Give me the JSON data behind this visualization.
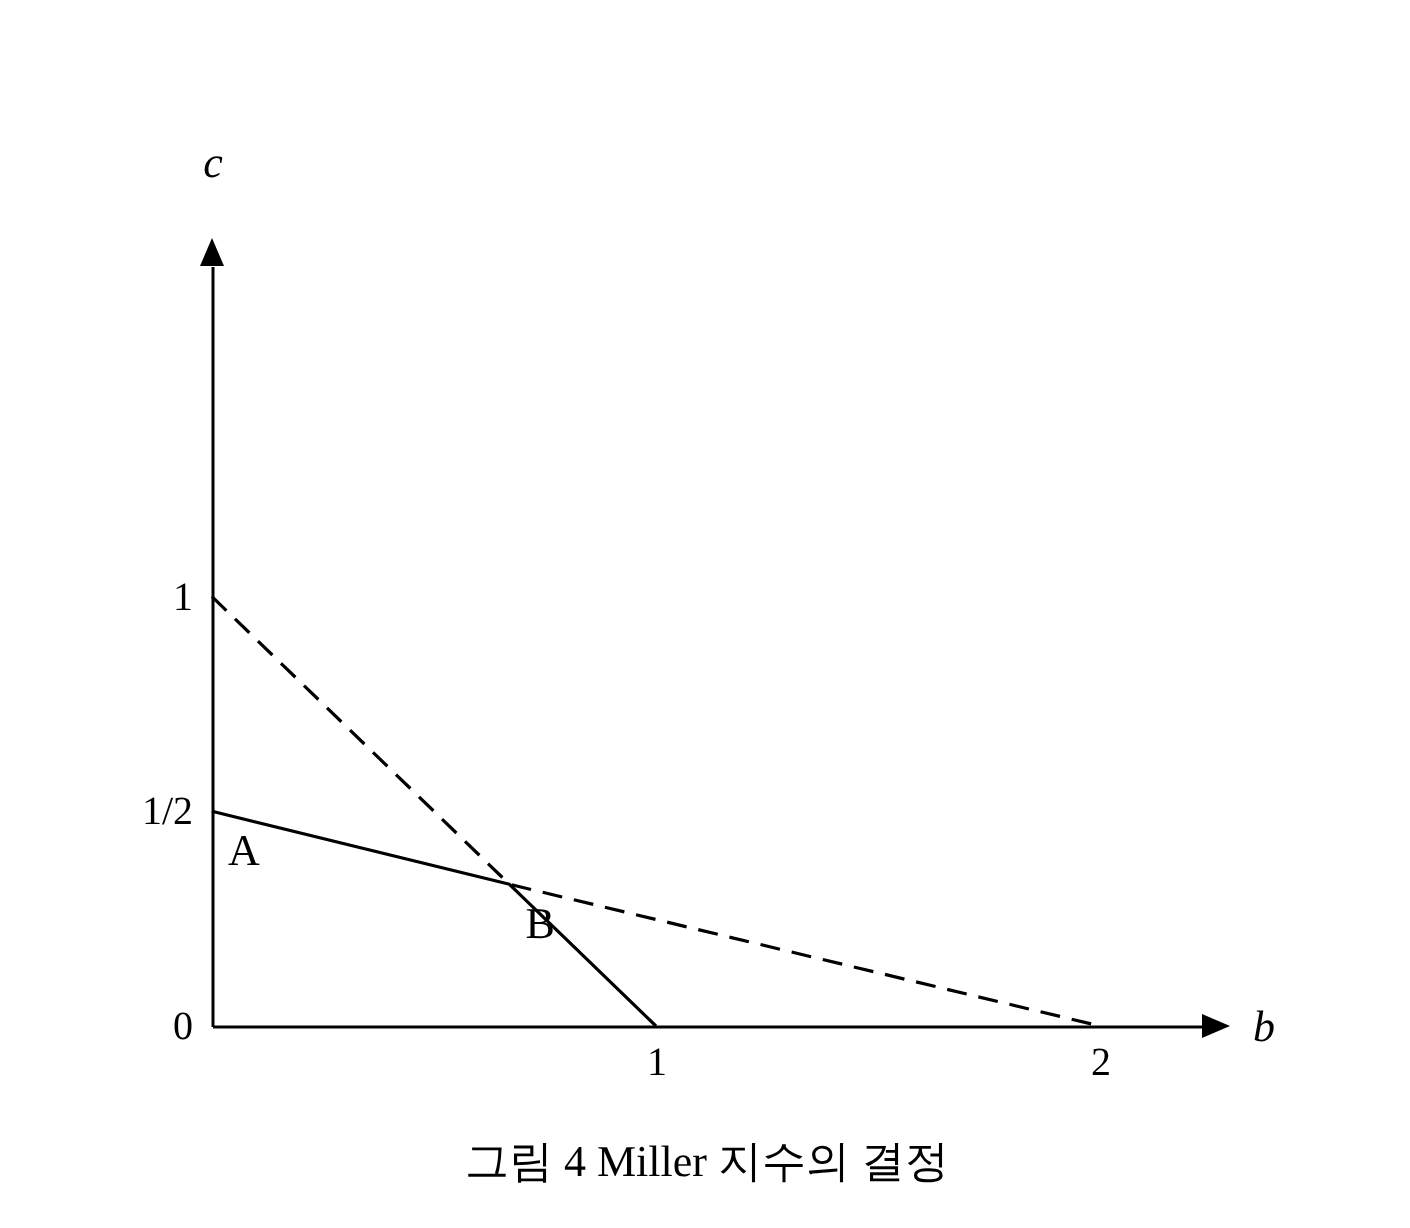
{
  "chart_data": {
    "type": "line",
    "title": "그림 4  Miller 지수의 결정",
    "xlabel": "b",
    "ylabel": "c",
    "xlim": [
      0,
      2.23
    ],
    "ylim": [
      0,
      1.77
    ],
    "xticks": [
      1,
      2
    ],
    "yticks": [
      0,
      {
        "value": 0.5,
        "label": "1/2"
      },
      1
    ],
    "grid": false,
    "marker": "none",
    "series": [
      {
        "color": "#000000",
        "line_style": "solid",
        "x": [
          0,
          0.67,
          1
        ],
        "values": [
          0.5,
          0.33,
          0
        ]
      },
      {
        "color": "#000000",
        "line_style": "dashed",
        "x": [
          0,
          0.67,
          2
        ],
        "values": [
          1,
          0.33,
          0
        ]
      }
    ],
    "annotations": [
      {
        "text": "A",
        "x": 0,
        "y": 0.5
      },
      {
        "text": "B",
        "x": 0.67,
        "y": 0.33
      }
    ]
  }
}
